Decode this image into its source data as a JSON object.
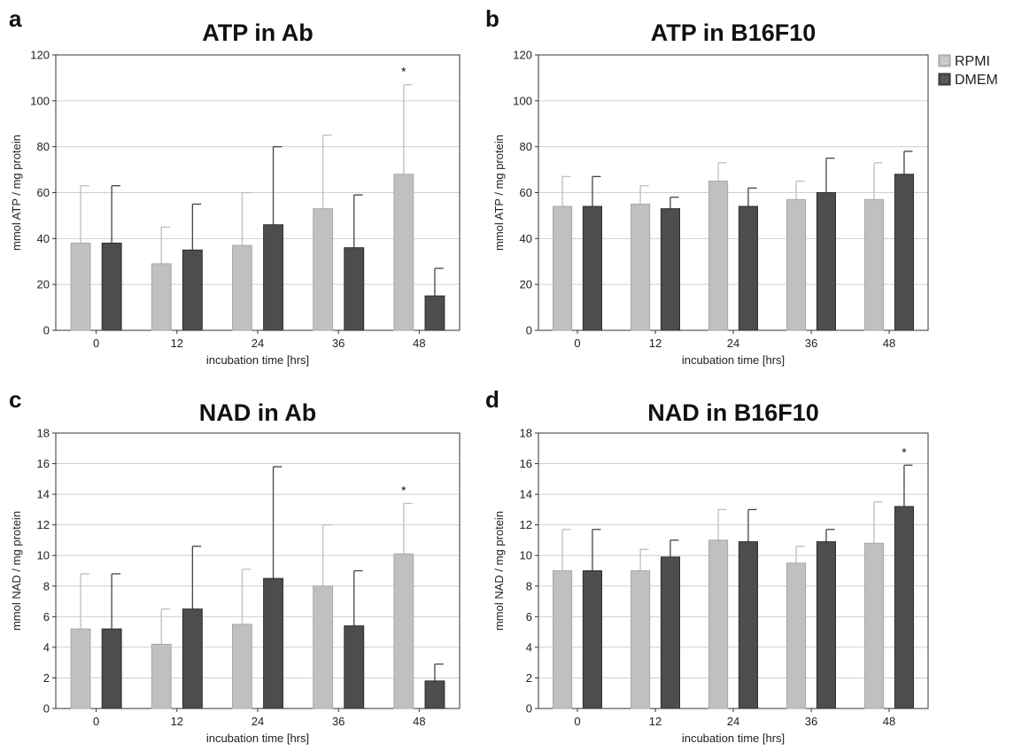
{
  "chart_data": [
    {
      "type": "bar",
      "panel": "a",
      "title": "ATP in Ab",
      "xlabel": "incubation time [hrs]",
      "ylabel": "mmol ATP / mg protein",
      "categories": [
        "0",
        "12",
        "24",
        "36",
        "48"
      ],
      "ylim": [
        0,
        120
      ],
      "yticks": [
        "0",
        "20",
        "40",
        "60",
        "80",
        "100",
        "120"
      ],
      "grid": true,
      "series": [
        {
          "name": "RPMI",
          "color": "#c0c0c0",
          "values": [
            38,
            29,
            37,
            53,
            68
          ],
          "errors": [
            25,
            16,
            23,
            32,
            39
          ]
        },
        {
          "name": "DMEM",
          "color": "#4d4d4d",
          "values": [
            38,
            35,
            46,
            36,
            15
          ],
          "errors": [
            25,
            20,
            34,
            23,
            12
          ]
        }
      ],
      "annotations": [
        {
          "text": "*",
          "series": 0,
          "category": "48"
        }
      ]
    },
    {
      "type": "bar",
      "panel": "b",
      "title": "ATP in B16F10",
      "xlabel": "incubation time [hrs]",
      "ylabel": "mmol ATP / mg protein",
      "categories": [
        "0",
        "12",
        "24",
        "36",
        "48"
      ],
      "ylim": [
        0,
        120
      ],
      "yticks": [
        "0",
        "20",
        "40",
        "60",
        "80",
        "100",
        "120"
      ],
      "grid": true,
      "legend": {
        "placement": "top-right-outside",
        "entries": [
          "RPMI",
          "DMEM"
        ]
      },
      "series": [
        {
          "name": "RPMI",
          "color": "#c0c0c0",
          "values": [
            54,
            55,
            65,
            57,
            57
          ],
          "errors": [
            13,
            8,
            8,
            8,
            16
          ]
        },
        {
          "name": "DMEM",
          "color": "#4d4d4d",
          "values": [
            54,
            53,
            54,
            60,
            68
          ],
          "errors": [
            13,
            5,
            8,
            15,
            10
          ]
        }
      ],
      "annotations": []
    },
    {
      "type": "bar",
      "panel": "c",
      "title": "NAD in Ab",
      "xlabel": "incubation time [hrs]",
      "ylabel": "mmol NAD / mg protein",
      "categories": [
        "0",
        "12",
        "24",
        "36",
        "48"
      ],
      "ylim": [
        0,
        18
      ],
      "yticks": [
        "0",
        "2",
        "4",
        "6",
        "8",
        "10",
        "12",
        "14",
        "16",
        "18"
      ],
      "grid": true,
      "series": [
        {
          "name": "RPMI",
          "color": "#c0c0c0",
          "values": [
            5.2,
            4.2,
            5.5,
            8.0,
            10.1
          ],
          "errors": [
            3.6,
            2.3,
            3.6,
            4.0,
            3.3
          ]
        },
        {
          "name": "DMEM",
          "color": "#4d4d4d",
          "values": [
            5.2,
            6.5,
            8.5,
            5.4,
            1.8
          ],
          "errors": [
            3.6,
            4.1,
            7.3,
            3.6,
            1.1
          ]
        }
      ],
      "annotations": [
        {
          "text": "*",
          "series": 0,
          "category": "48"
        }
      ]
    },
    {
      "type": "bar",
      "panel": "d",
      "title": "NAD in B16F10",
      "xlabel": "incubation time [hrs]",
      "ylabel": "mmol NAD / mg protein",
      "categories": [
        "0",
        "12",
        "24",
        "36",
        "48"
      ],
      "ylim": [
        0,
        18
      ],
      "yticks": [
        "0",
        "2",
        "4",
        "6",
        "8",
        "10",
        "12",
        "14",
        "16",
        "18"
      ],
      "grid": true,
      "series": [
        {
          "name": "RPMI",
          "color": "#c0c0c0",
          "values": [
            9.0,
            9.0,
            11.0,
            9.5,
            10.8
          ],
          "errors": [
            2.7,
            1.4,
            2.0,
            1.1,
            2.7
          ]
        },
        {
          "name": "DMEM",
          "color": "#4d4d4d",
          "values": [
            9.0,
            9.9,
            10.9,
            10.9,
            13.2
          ],
          "errors": [
            2.7,
            1.1,
            2.1,
            0.8,
            2.7
          ]
        }
      ],
      "annotations": [
        {
          "text": "*",
          "series": 1,
          "category": "48"
        }
      ]
    }
  ]
}
